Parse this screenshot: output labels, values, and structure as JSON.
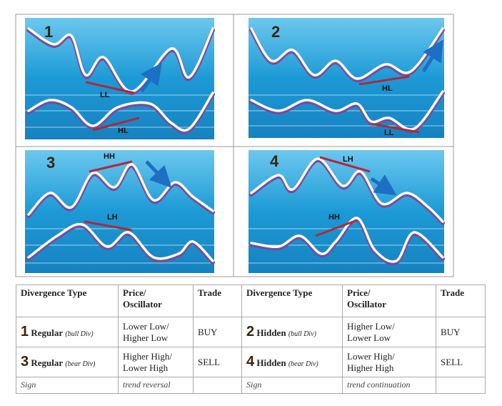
{
  "panels": [
    {
      "number": "1",
      "price_label": "LL",
      "oscillator_label": "HL"
    },
    {
      "number": "2",
      "price_label": "HL",
      "oscillator_label": "LL"
    },
    {
      "number": "3",
      "price_label": "HH",
      "oscillator_label": "LH"
    },
    {
      "number": "4",
      "price_label": "LH",
      "oscillator_label": "HH"
    }
  ],
  "table": {
    "header": [
      "Divergence Type",
      [
        "Price/",
        "Oscillator"
      ],
      "Trade",
      "Divergence Type",
      [
        "Price/",
        "Oscillator"
      ],
      "Trade"
    ],
    "rows": [
      [
        {
          "number": "1",
          "type": "Regular",
          "note": "(bull Div)"
        },
        [
          "Lower Low/",
          "Higher Low"
        ],
        "BUY",
        {
          "number": "2",
          "type": "Hidden",
          "note": "(bull Div)"
        },
        [
          "Higher Low/",
          "Lower Low"
        ],
        "BUY"
      ],
      [
        {
          "number": "3",
          "type": "Regular",
          "note": "(bear Div)"
        },
        [
          "Higher High/",
          "Lower High"
        ],
        "SELL",
        {
          "number": "4",
          "type": "Hidden",
          "note": "(bear Div)"
        },
        [
          "Lower High/",
          "Higher High"
        ],
        "SELL"
      ]
    ],
    "sign_row": {
      "left_label": "Sign",
      "left_value": "trend reversal",
      "right_label": "Sign",
      "right_value": "trend continuation"
    }
  }
}
